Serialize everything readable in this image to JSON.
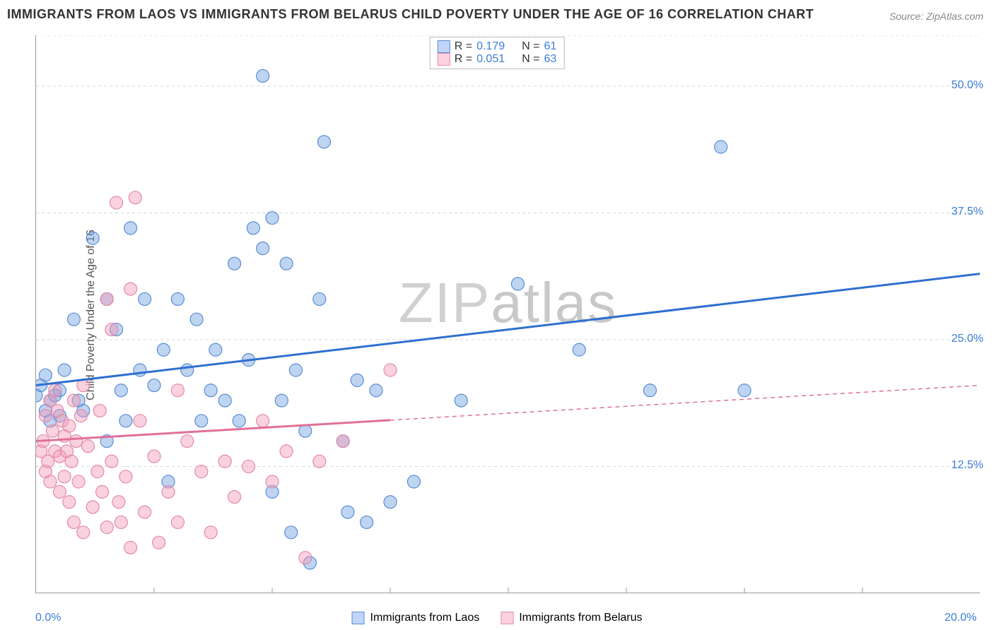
{
  "title": "IMMIGRANTS FROM LAOS VS IMMIGRANTS FROM BELARUS CHILD POVERTY UNDER THE AGE OF 16 CORRELATION CHART",
  "source": "Source: ZipAtlas.com",
  "y_axis_label": "Child Poverty Under the Age of 16",
  "watermark": "ZIPatlas",
  "chart": {
    "type": "scatter-with-regression",
    "xlim": [
      0,
      20
    ],
    "ylim": [
      0,
      55
    ],
    "x_ticks": [
      0,
      20
    ],
    "x_tick_labels": [
      "0.0%",
      "20.0%"
    ],
    "x_minor_grid": [
      2.5,
      5,
      7.5,
      10,
      12.5,
      15,
      17.5
    ],
    "y_ticks": [
      12.5,
      25,
      37.5,
      50
    ],
    "y_tick_labels": [
      "12.5%",
      "25.0%",
      "37.5%",
      "50.0%"
    ],
    "background_color": "#ffffff",
    "grid_color": "#d8d8d8",
    "grid_dash": "4,4",
    "marker_radius": 9,
    "marker_stroke_width": 1.2,
    "regression_line_width": 3
  },
  "series": [
    {
      "name": "Immigrants from Laos",
      "color_fill": "rgba(111,162,224,0.45)",
      "color_stroke": "#5a8cd6",
      "line_color": "#2f6fd0",
      "line_dash": "none",
      "R": "0.179",
      "N": "61",
      "regression": {
        "x1": 0,
        "y1": 20.5,
        "x2": 20,
        "y2": 31.5
      },
      "points": [
        [
          0.1,
          20.5
        ],
        [
          0.2,
          18
        ],
        [
          0.2,
          21.5
        ],
        [
          0.3,
          17
        ],
        [
          0.3,
          19
        ],
        [
          0.4,
          19.5
        ],
        [
          0.5,
          20
        ],
        [
          0.5,
          17.5
        ],
        [
          0.6,
          22
        ],
        [
          0.8,
          27
        ],
        [
          0.9,
          19
        ],
        [
          1.0,
          18
        ],
        [
          1.2,
          35
        ],
        [
          1.5,
          29
        ],
        [
          1.5,
          15
        ],
        [
          1.7,
          26
        ],
        [
          1.8,
          20
        ],
        [
          1.9,
          17
        ],
        [
          2.0,
          36
        ],
        [
          2.2,
          22
        ],
        [
          2.3,
          29
        ],
        [
          2.5,
          20.5
        ],
        [
          2.7,
          24
        ],
        [
          2.8,
          11
        ],
        [
          3.0,
          29
        ],
        [
          3.2,
          22
        ],
        [
          3.4,
          27
        ],
        [
          3.5,
          17
        ],
        [
          3.7,
          20
        ],
        [
          3.8,
          24
        ],
        [
          4.0,
          19
        ],
        [
          4.2,
          32.5
        ],
        [
          4.3,
          17
        ],
        [
          4.5,
          23
        ],
        [
          4.6,
          36
        ],
        [
          4.8,
          34
        ],
        [
          4.8,
          51
        ],
        [
          5.0,
          37
        ],
        [
          5.0,
          10
        ],
        [
          5.2,
          19
        ],
        [
          5.3,
          32.5
        ],
        [
          5.4,
          6
        ],
        [
          5.5,
          22
        ],
        [
          5.7,
          16
        ],
        [
          5.8,
          3
        ],
        [
          6.0,
          29
        ],
        [
          6.1,
          44.5
        ],
        [
          6.5,
          15
        ],
        [
          6.6,
          8
        ],
        [
          6.8,
          21
        ],
        [
          7.0,
          7
        ],
        [
          7.2,
          20
        ],
        [
          7.5,
          9
        ],
        [
          8.0,
          11
        ],
        [
          9.0,
          19
        ],
        [
          10.2,
          30.5
        ],
        [
          11.5,
          24
        ],
        [
          13.0,
          20
        ],
        [
          14.5,
          44
        ],
        [
          15.0,
          20
        ],
        [
          0.0,
          19.5
        ]
      ]
    },
    {
      "name": "Immigrants from Belarus",
      "color_fill": "rgba(244,154,184,0.45)",
      "color_stroke": "#e38aa9",
      "line_color": "#e16f98",
      "line_dash": "6,5",
      "R": "0.051",
      "N": "63",
      "regression": {
        "x1": 0,
        "y1": 15.0,
        "x2": 20,
        "y2": 20.5
      },
      "regression_solid_until_x": 7.5,
      "points": [
        [
          0.1,
          14
        ],
        [
          0.15,
          15
        ],
        [
          0.2,
          12
        ],
        [
          0.2,
          17.5
        ],
        [
          0.25,
          13
        ],
        [
          0.3,
          19
        ],
        [
          0.3,
          11
        ],
        [
          0.35,
          16
        ],
        [
          0.4,
          20
        ],
        [
          0.4,
          14
        ],
        [
          0.45,
          18
        ],
        [
          0.5,
          13.5
        ],
        [
          0.5,
          10
        ],
        [
          0.55,
          17
        ],
        [
          0.6,
          15.5
        ],
        [
          0.6,
          11.5
        ],
        [
          0.65,
          14
        ],
        [
          0.7,
          16.5
        ],
        [
          0.7,
          9
        ],
        [
          0.75,
          13
        ],
        [
          0.8,
          19
        ],
        [
          0.8,
          7
        ],
        [
          0.85,
          15
        ],
        [
          0.9,
          11
        ],
        [
          0.95,
          17.5
        ],
        [
          1.0,
          6
        ],
        [
          1.0,
          20.5
        ],
        [
          1.1,
          14.5
        ],
        [
          1.2,
          8.5
        ],
        [
          1.3,
          12
        ],
        [
          1.35,
          18
        ],
        [
          1.4,
          10
        ],
        [
          1.5,
          29
        ],
        [
          1.5,
          6.5
        ],
        [
          1.6,
          26
        ],
        [
          1.6,
          13
        ],
        [
          1.7,
          38.5
        ],
        [
          1.75,
          9
        ],
        [
          1.8,
          7
        ],
        [
          1.9,
          11.5
        ],
        [
          2.0,
          30
        ],
        [
          2.0,
          4.5
        ],
        [
          2.1,
          39
        ],
        [
          2.2,
          17
        ],
        [
          2.3,
          8
        ],
        [
          2.5,
          13.5
        ],
        [
          2.6,
          5
        ],
        [
          2.8,
          10
        ],
        [
          3.0,
          20
        ],
        [
          3.0,
          7
        ],
        [
          3.2,
          15
        ],
        [
          3.5,
          12
        ],
        [
          3.7,
          6
        ],
        [
          4.0,
          13
        ],
        [
          4.2,
          9.5
        ],
        [
          4.5,
          12.5
        ],
        [
          4.8,
          17
        ],
        [
          5.0,
          11
        ],
        [
          5.3,
          14
        ],
        [
          5.7,
          3.5
        ],
        [
          6.0,
          13
        ],
        [
          6.5,
          15
        ],
        [
          7.5,
          22
        ]
      ]
    }
  ],
  "legend_top": {
    "rows": [
      {
        "swatch": "blue",
        "r_label": "R =",
        "r_value": "0.179",
        "n_label": "N =",
        "n_value": "61"
      },
      {
        "swatch": "pink",
        "r_label": "R =",
        "r_value": "0.051",
        "n_label": "N =",
        "n_value": "63"
      }
    ]
  },
  "legend_bottom": {
    "items": [
      {
        "swatch": "blue",
        "label": "Immigrants from Laos"
      },
      {
        "swatch": "pink",
        "label": "Immigrants from Belarus"
      }
    ]
  }
}
